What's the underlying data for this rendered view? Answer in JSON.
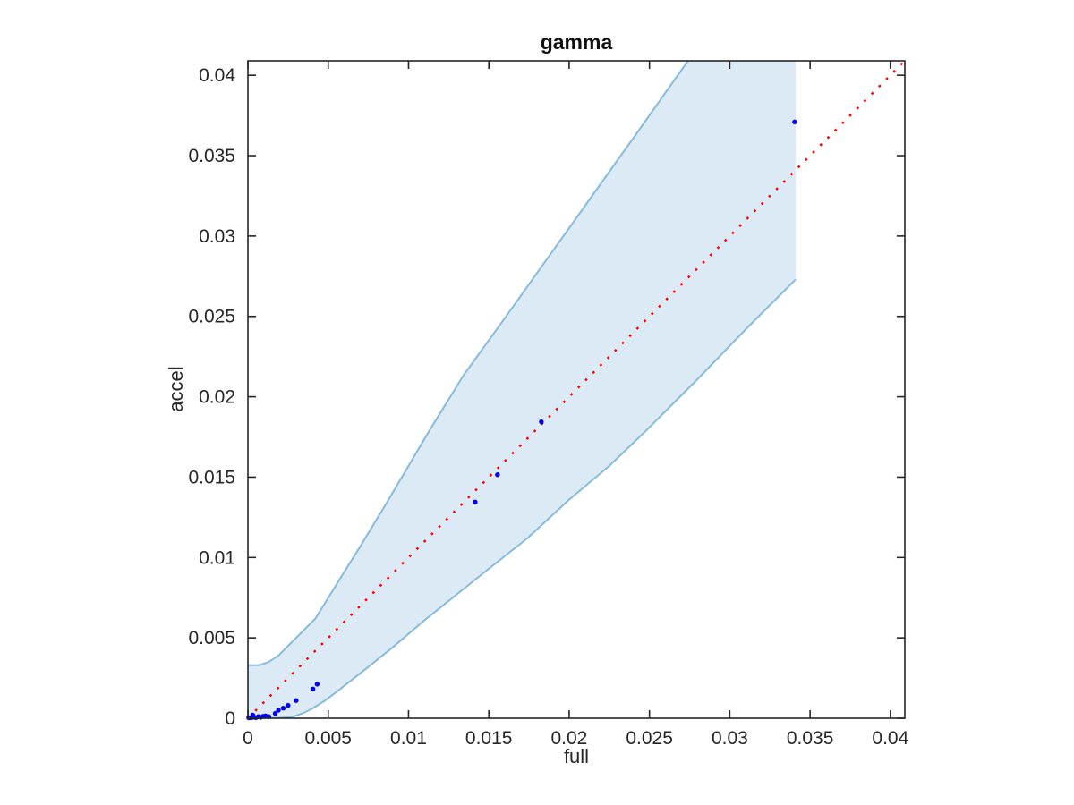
{
  "chart_data": {
    "type": "scatter",
    "title": "gamma",
    "xlabel": "full",
    "ylabel": "accel",
    "xlim": [
      0,
      0.0409
    ],
    "ylim": [
      0,
      0.0409
    ],
    "grid": false,
    "box": true,
    "tick_direction": "in",
    "xtick_values": [
      0,
      0.005,
      0.01,
      0.015,
      0.02,
      0.025,
      0.03,
      0.035,
      0.04
    ],
    "xtick_labels": [
      "0",
      "0.005",
      "0.01",
      "0.015",
      "0.02",
      "0.025",
      "0.03",
      "0.035",
      "0.04"
    ],
    "ytick_values": [
      0,
      0.005,
      0.01,
      0.015,
      0.02,
      0.025,
      0.03,
      0.035,
      0.04
    ],
    "ytick_labels": [
      "0",
      "0.005",
      "0.01",
      "0.015",
      "0.02",
      "0.025",
      "0.03",
      "0.035",
      "0.04"
    ],
    "identity_line": {
      "style": "dotted",
      "color": "#ff0000",
      "from": [
        0,
        0
      ],
      "to": [
        0.0409,
        0.0409
      ]
    },
    "band": {
      "fill": "#dceaf6",
      "stroke": "#87badb",
      "upper": [
        [
          0,
          0.0033
        ],
        [
          0.0007,
          0.0033
        ],
        [
          0.0013,
          0.0035
        ],
        [
          0.0019,
          0.0039
        ],
        [
          0.0027,
          0.0047
        ],
        [
          0.0035,
          0.0055
        ],
        [
          0.0042,
          0.0062
        ],
        [
          0.0055,
          0.0083
        ],
        [
          0.007,
          0.0107
        ],
        [
          0.0087,
          0.0135
        ],
        [
          0.0113,
          0.0179
        ],
        [
          0.0134,
          0.0213
        ],
        [
          0.016,
          0.0249
        ],
        [
          0.018,
          0.0277
        ],
        [
          0.021,
          0.0319
        ],
        [
          0.024,
          0.0361
        ],
        [
          0.0274,
          0.0409
        ]
      ],
      "lower": [
        [
          0,
          0
        ],
        [
          0.002,
          3e-05
        ],
        [
          0.0028,
          0.0001
        ],
        [
          0.0034,
          0.0003
        ],
        [
          0.004,
          0.0006
        ],
        [
          0.0048,
          0.0011
        ],
        [
          0.0056,
          0.0017
        ],
        [
          0.007,
          0.0028
        ],
        [
          0.009,
          0.0044
        ],
        [
          0.011,
          0.0061
        ],
        [
          0.013,
          0.0077
        ],
        [
          0.015,
          0.0093
        ],
        [
          0.0174,
          0.0112
        ],
        [
          0.02,
          0.0136
        ],
        [
          0.0225,
          0.0157
        ],
        [
          0.0248,
          0.0179
        ],
        [
          0.028,
          0.0211
        ],
        [
          0.031,
          0.0242
        ],
        [
          0.0341,
          0.0273
        ]
      ]
    },
    "points": {
      "color": "#0000ee",
      "marker": "dot",
      "data": [
        [
          5e-05,
          3e-05
        ],
        [
          0.0002,
          3e-05
        ],
        [
          0.00035,
          6e-05
        ],
        [
          0.0005,
          4e-05
        ],
        [
          0.00065,
          0.0001
        ],
        [
          0.0008,
          6e-05
        ],
        [
          0.00095,
          0.00012
        ],
        [
          0.0011,
          0.00015
        ],
        [
          0.0003,
          0.0002
        ],
        [
          0.0013,
          0.0001
        ],
        [
          0.0017,
          0.0003
        ],
        [
          0.0019,
          0.0005
        ],
        [
          0.0022,
          0.00063
        ],
        [
          0.0025,
          0.0008
        ],
        [
          0.003,
          0.0011
        ],
        [
          0.00405,
          0.00182
        ],
        [
          0.00431,
          0.00212
        ],
        [
          0.01415,
          0.01345
        ],
        [
          0.01554,
          0.01515
        ],
        [
          0.01827,
          0.01844
        ],
        [
          0.03404,
          0.0371
        ]
      ]
    },
    "axis_color": "#262626",
    "tick_label_color": "#262626"
  }
}
